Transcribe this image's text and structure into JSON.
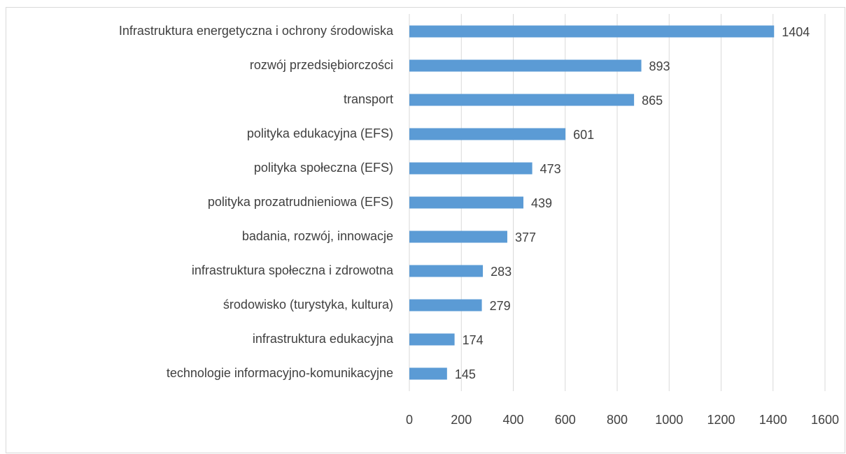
{
  "chart_data": {
    "type": "bar",
    "orientation": "horizontal",
    "categories": [
      "Infrastruktura energetyczna i ochrony środowiska",
      "rozwój przedsiębiorczości",
      "transport",
      "polityka edukacyjna (EFS)",
      "polityka społeczna (EFS)",
      "polityka prozatrudnieniowa (EFS)",
      "badania, rozwój, innowacje",
      "infrastruktura społeczna i zdrowotna",
      "środowisko (turystyka, kultura)",
      "infrastruktura edukacyjna",
      "technologie informacyjno-komunikacyjne"
    ],
    "values": [
      1404,
      893,
      865,
      601,
      473,
      439,
      377,
      283,
      279,
      174,
      145
    ],
    "color": "#5b9bd5",
    "xlim": [
      0,
      1600
    ],
    "xticks": [
      0,
      200,
      400,
      600,
      800,
      1000,
      1200,
      1400,
      1600
    ],
    "grid": true
  }
}
